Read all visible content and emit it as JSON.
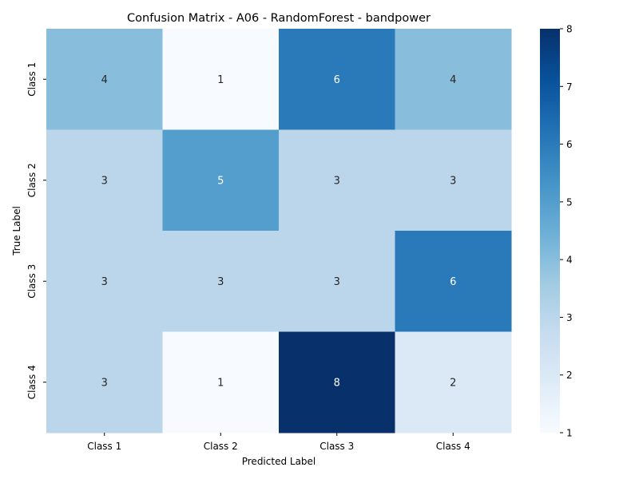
{
  "chart_data": {
    "type": "heatmap",
    "title": "Confusion Matrix - A06 - RandomForest - bandpower",
    "xlabel": "Predicted Label",
    "ylabel": "True Label",
    "x_categories": [
      "Class 1",
      "Class 2",
      "Class 3",
      "Class 4"
    ],
    "y_categories": [
      "Class 1",
      "Class 2",
      "Class 3",
      "Class 4"
    ],
    "values": [
      [
        4,
        1,
        6,
        4
      ],
      [
        3,
        5,
        3,
        3
      ],
      [
        3,
        3,
        3,
        6
      ],
      [
        3,
        1,
        8,
        2
      ]
    ],
    "colorbar": {
      "min": 1,
      "max": 8,
      "ticks": [
        "1",
        "2",
        "3",
        "4",
        "5",
        "6",
        "7",
        "8"
      ]
    },
    "colormap": "Blues",
    "grid": false
  }
}
